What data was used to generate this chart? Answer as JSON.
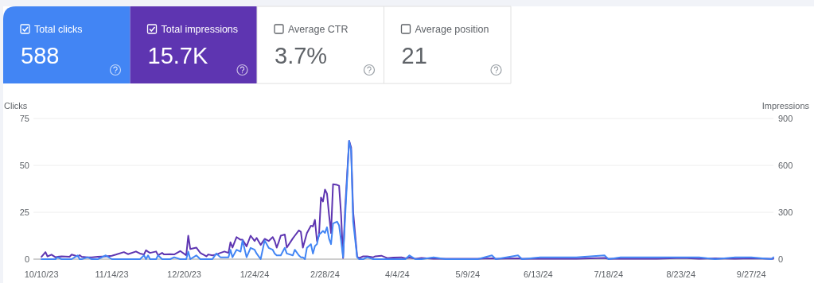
{
  "chart_data": [
    {
      "type": "other",
      "categories": [
        "Total clicks",
        "Total impressions",
        "Average CTR",
        "Average position"
      ],
      "value_labels": [
        "588",
        "15.7K",
        "3.7%",
        "21"
      ],
      "colors": [
        "#4285f4",
        "#5e35b1",
        null,
        null
      ]
    },
    {
      "type": "line",
      "ylabel": "Clicks",
      "y2label": "Impressions",
      "grid": "y",
      "marker": "none",
      "xlim": [
        "2023-10-06",
        "2024-10-08"
      ],
      "xticks": [
        {
          "value": "2023-10-10",
          "label": "10/10/23"
        },
        {
          "value": "2023-11-14",
          "label": "11/14/23"
        },
        {
          "value": "2023-12-20",
          "label": "12/20/23"
        },
        {
          "value": "2024-01-24",
          "label": "1/24/24"
        },
        {
          "value": "2024-02-28",
          "label": "2/28/24"
        },
        {
          "value": "2024-04-04",
          "label": "4/4/24"
        },
        {
          "value": "2024-05-09",
          "label": "5/9/24"
        },
        {
          "value": "2024-06-13",
          "label": "6/13/24"
        },
        {
          "value": "2024-07-18",
          "label": "7/18/24"
        },
        {
          "value": "2024-08-23",
          "label": "8/23/24"
        },
        {
          "value": "2024-09-27",
          "label": "9/27/24"
        }
      ],
      "ylim": [
        0,
        75
      ],
      "yticks": [
        0,
        25,
        50,
        75
      ],
      "y2lim": [
        0,
        900
      ],
      "y2ticks": [
        0,
        300,
        600,
        900
      ],
      "x": [
        "2023-10-10",
        "2023-10-12",
        "2023-10-13",
        "2023-10-15",
        "2023-10-17",
        "2023-10-18",
        "2023-10-20",
        "2023-10-24",
        "2023-10-25",
        "2023-10-28",
        "2023-10-29",
        "2023-10-30",
        "2023-11-02",
        "2023-11-04",
        "2023-11-07",
        "2023-11-11",
        "2023-11-14",
        "2023-11-16",
        "2023-11-20",
        "2023-11-22",
        "2023-11-26",
        "2023-11-28",
        "2023-11-30",
        "2023-12-01",
        "2023-12-02",
        "2023-12-03",
        "2023-12-06",
        "2023-12-07",
        "2023-12-09",
        "2023-12-10",
        "2023-12-13",
        "2023-12-15",
        "2023-12-18",
        "2023-12-21",
        "2023-12-22",
        "2023-12-23",
        "2023-12-26",
        "2023-12-28",
        "2023-12-31",
        "2024-01-01",
        "2024-01-03",
        "2024-01-05",
        "2024-01-07",
        "2024-01-09",
        "2024-01-11",
        "2024-01-12",
        "2024-01-13",
        "2024-01-15",
        "2024-01-17",
        "2024-01-18",
        "2024-01-20",
        "2024-01-22",
        "2024-01-24",
        "2024-01-25",
        "2024-01-27",
        "2024-01-29",
        "2024-01-31",
        "2024-02-02",
        "2024-02-03",
        "2024-02-04",
        "2024-02-05",
        "2024-02-06",
        "2024-02-08",
        "2024-02-09",
        "2024-02-12",
        "2024-02-13",
        "2024-02-15",
        "2024-02-16",
        "2024-02-17",
        "2024-02-18",
        "2024-02-19",
        "2024-02-21",
        "2024-02-22",
        "2024-02-23",
        "2024-02-24",
        "2024-02-25",
        "2024-02-26",
        "2024-02-27",
        "2024-02-28",
        "2024-02-29",
        "2024-03-01",
        "2024-03-02",
        "2024-03-03",
        "2024-03-05",
        "2024-03-06",
        "2024-03-07",
        "2024-03-08",
        "2024-03-09",
        "2024-03-11",
        "2024-03-12",
        "2024-03-13",
        "2024-03-15",
        "2024-03-16",
        "2024-03-18",
        "2024-03-20",
        "2024-03-23",
        "2024-03-24",
        "2024-03-27",
        "2024-03-30",
        "2024-04-02",
        "2024-04-06",
        "2024-04-08",
        "2024-04-10",
        "2024-04-13",
        "2024-04-16",
        "2024-04-22",
        "2024-04-28",
        "2024-05-06",
        "2024-05-14",
        "2024-05-21",
        "2024-05-23",
        "2024-06-03",
        "2024-06-05",
        "2024-06-14",
        "2024-06-22",
        "2024-07-02",
        "2024-07-16",
        "2024-07-18",
        "2024-07-24",
        "2024-08-03",
        "2024-08-11",
        "2024-08-24",
        "2024-09-01",
        "2024-09-09",
        "2024-09-19",
        "2024-09-27",
        "2024-10-07",
        "2024-10-08"
      ],
      "series": [
        {
          "color": "#5e35b1",
          "axis": "y2",
          "values": [
            15,
            45,
            18,
            29,
            12,
            15,
            18,
            15,
            29,
            18,
            25,
            15,
            12,
            12,
            15,
            18,
            22,
            29,
            45,
            32,
            49,
            36,
            30,
            57,
            48,
            40,
            49,
            25,
            40,
            30,
            32,
            30,
            52,
            25,
            150,
            65,
            74,
            40,
            18,
            30,
            24,
            30,
            40,
            49,
            40,
            108,
            74,
            141,
            124,
            124,
            82,
            150,
            116,
            136,
            91,
            130,
            116,
            141,
            116,
            74,
            110,
            150,
            158,
            74,
            133,
            150,
            184,
            175,
            74,
            120,
            167,
            214,
            209,
            251,
            116,
            150,
            394,
            369,
            445,
            419,
            285,
            167,
            479,
            475,
            470,
            285,
            7,
            318,
            757,
            714,
            302,
            15,
            7,
            18,
            18,
            12,
            18,
            22,
            7,
            10,
            12,
            5,
            10,
            3,
            8,
            3,
            2,
            3,
            2,
            5,
            2,
            5,
            2,
            3,
            2,
            3,
            8,
            2,
            3,
            2,
            3,
            8,
            3,
            5,
            3,
            5,
            3,
            3
          ]
        },
        {
          "color": "#4285f4",
          "values": [
            0,
            0,
            0,
            0,
            0,
            1,
            0,
            0,
            0,
            2,
            0,
            0,
            1,
            0,
            0,
            2,
            0,
            0,
            0,
            0,
            0,
            0,
            2,
            0,
            2,
            0,
            0,
            2,
            0,
            0,
            0,
            1,
            0,
            0,
            4,
            0,
            2,
            0,
            0,
            0,
            0,
            3,
            1,
            1,
            1,
            5,
            1,
            5,
            4,
            10,
            1,
            6,
            5,
            3,
            0,
            10,
            6,
            5,
            3,
            2,
            2,
            2,
            6,
            3,
            2,
            5,
            2,
            1,
            1,
            0,
            6,
            8,
            3,
            7,
            8,
            13,
            14,
            15,
            14,
            17,
            11,
            8,
            19,
            20,
            18,
            10,
            1,
            22,
            63,
            58,
            20,
            1,
            0,
            0,
            1,
            0,
            0,
            0,
            0,
            0,
            0,
            0,
            2,
            0,
            0,
            1,
            0,
            0,
            0,
            2,
            0,
            2,
            0,
            1,
            1,
            1,
            2,
            0,
            1,
            1,
            1,
            1,
            1,
            0,
            1,
            1,
            0,
            1
          ]
        }
      ]
    }
  ]
}
